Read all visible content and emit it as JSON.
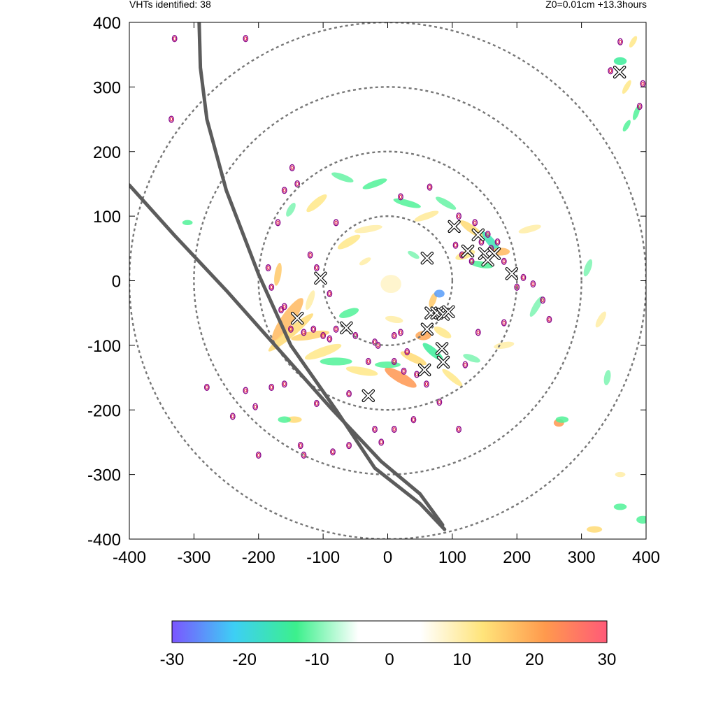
{
  "header": {
    "left": "VHTs identified: 38",
    "right": "Z0=0.01cm  +13.3hours"
  },
  "chart_data": {
    "type": "heatmap",
    "title": "",
    "xlabel": "",
    "ylabel": "",
    "xlim": [
      -400,
      400
    ],
    "ylim": [
      -400,
      400
    ],
    "xticks": [
      -400,
      -300,
      -200,
      -100,
      0,
      100,
      200,
      300,
      400
    ],
    "yticks": [
      -400,
      -300,
      -200,
      -100,
      0,
      100,
      200,
      300,
      400
    ],
    "grid": false,
    "range_rings": [
      100,
      200,
      300,
      400
    ],
    "colorbar": {
      "min": -30,
      "max": 30,
      "ticks": [
        -30,
        -20,
        -10,
        0,
        10,
        20,
        30
      ],
      "stops": [
        "#7b55ff",
        "#3dcff5",
        "#3cf08c",
        "#ffffff",
        "#ffffff",
        "#ffe47a",
        "#ff9a4d",
        "#ff5a78"
      ]
    },
    "tracks": [
      {
        "points": [
          [
            -292,
            400
          ],
          [
            -290,
            330
          ],
          [
            -280,
            250
          ],
          [
            -250,
            140
          ],
          [
            -200,
            10
          ],
          [
            -150,
            -100
          ],
          [
            -80,
            -200
          ],
          [
            -20,
            -290
          ],
          [
            50,
            -345
          ],
          [
            88,
            -385
          ]
        ]
      },
      {
        "points": [
          [
            -400,
            148
          ],
          [
            -330,
            70
          ],
          [
            -250,
            -15
          ],
          [
            -170,
            -105
          ],
          [
            -90,
            -195
          ],
          [
            -10,
            -280
          ],
          [
            50,
            -330
          ],
          [
            85,
            -378
          ]
        ]
      }
    ],
    "vht_markers": [
      [
        -104,
        4
      ],
      [
        -140,
        -58
      ],
      [
        -64,
        -73
      ],
      [
        -30,
        -178
      ],
      [
        61,
        35
      ],
      [
        103,
        84
      ],
      [
        140,
        71
      ],
      [
        124,
        46
      ],
      [
        150,
        42
      ],
      [
        165,
        42
      ],
      [
        192,
        11
      ],
      [
        67,
        -50
      ],
      [
        76,
        -50
      ],
      [
        86,
        -52
      ],
      [
        94,
        -48
      ],
      [
        61,
        -75
      ],
      [
        84,
        -105
      ],
      [
        86,
        -126
      ],
      [
        57,
        -138
      ],
      [
        359,
        323
      ],
      [
        155,
        32
      ]
    ],
    "contours": [
      [
        -170,
        90
      ],
      [
        -160,
        140
      ],
      [
        -148,
        175
      ],
      [
        -140,
        150
      ],
      [
        -185,
        20
      ],
      [
        -180,
        -10
      ],
      [
        -165,
        -45
      ],
      [
        -160,
        -40
      ],
      [
        -150,
        -75
      ],
      [
        -130,
        -80
      ],
      [
        -115,
        -75
      ],
      [
        -100,
        -85
      ],
      [
        -90,
        -90
      ],
      [
        -80,
        -75
      ],
      [
        -50,
        -85
      ],
      [
        -20,
        -95
      ],
      [
        10,
        -85
      ],
      [
        20,
        -80
      ],
      [
        -60,
        -175
      ],
      [
        -20,
        -230
      ],
      [
        -10,
        -250
      ],
      [
        10,
        -230
      ],
      [
        40,
        -215
      ],
      [
        80,
        -188
      ],
      [
        110,
        -230
      ],
      [
        60,
        -160
      ],
      [
        45,
        -145
      ],
      [
        25,
        -140
      ],
      [
        10,
        -125
      ],
      [
        30,
        -110
      ],
      [
        120,
        -130
      ],
      [
        140,
        -80
      ],
      [
        180,
        -65
      ],
      [
        200,
        -10
      ],
      [
        210,
        5
      ],
      [
        225,
        -5
      ],
      [
        240,
        -30
      ],
      [
        250,
        -60
      ],
      [
        105,
        55
      ],
      [
        115,
        40
      ],
      [
        130,
        30
      ],
      [
        145,
        60
      ],
      [
        160,
        50
      ],
      [
        170,
        60
      ],
      [
        180,
        30
      ],
      [
        155,
        72
      ],
      [
        135,
        90
      ],
      [
        110,
        100
      ],
      [
        65,
        145
      ],
      [
        20,
        130
      ],
      [
        -80,
        90
      ],
      [
        -110,
        20
      ],
      [
        -90,
        -20
      ],
      [
        -120,
        40
      ],
      [
        -160,
        -160
      ],
      [
        -180,
        -165
      ],
      [
        -205,
        -195
      ],
      [
        -240,
        -210
      ],
      [
        -220,
        -170
      ],
      [
        -280,
        -165
      ],
      [
        -135,
        -255
      ],
      [
        -130,
        -270
      ],
      [
        -85,
        -265
      ],
      [
        -60,
        -255
      ],
      [
        -200,
        -270
      ],
      [
        -330,
        375
      ],
      [
        -220,
        375
      ],
      [
        345,
        325
      ],
      [
        360,
        370
      ],
      [
        390,
        270
      ],
      [
        395,
        305
      ],
      [
        -335,
        250
      ],
      [
        -110,
        -190
      ],
      [
        -30,
        -125
      ],
      [
        -15,
        -100
      ]
    ],
    "blobs": [
      {
        "x": -155,
        "y": -60,
        "rx": 40,
        "ry": 10,
        "rot": 55,
        "v": 18
      },
      {
        "x": -150,
        "y": -80,
        "rx": 45,
        "ry": 7,
        "rot": 40,
        "v": 14
      },
      {
        "x": -120,
        "y": -85,
        "rx": 30,
        "ry": 6,
        "rot": 10,
        "v": 15
      },
      {
        "x": -100,
        "y": -110,
        "rx": 30,
        "ry": 7,
        "rot": 20,
        "v": 12
      },
      {
        "x": -80,
        "y": -125,
        "rx": 25,
        "ry": 6,
        "rot": 0,
        "v": -12
      },
      {
        "x": -40,
        "y": -140,
        "rx": 25,
        "ry": 6,
        "rot": -10,
        "v": 12
      },
      {
        "x": 20,
        "y": -150,
        "rx": 28,
        "ry": 8,
        "rot": -30,
        "v": 22
      },
      {
        "x": 40,
        "y": -120,
        "rx": 22,
        "ry": 6,
        "rot": -25,
        "v": 14
      },
      {
        "x": 70,
        "y": -110,
        "rx": 20,
        "ry": 6,
        "rot": -40,
        "v": -14
      },
      {
        "x": 55,
        "y": -85,
        "rx": 12,
        "ry": 7,
        "rot": 0,
        "v": 20
      },
      {
        "x": 85,
        "y": -80,
        "rx": 15,
        "ry": 6,
        "rot": -30,
        "v": 12
      },
      {
        "x": 70,
        "y": -30,
        "rx": 12,
        "ry": 5,
        "rot": 70,
        "v": 16
      },
      {
        "x": 80,
        "y": -20,
        "rx": 8,
        "ry": 6,
        "rot": 0,
        "v": -25
      },
      {
        "x": 5,
        "y": -5,
        "rx": 16,
        "ry": 14,
        "rot": 0,
        "v": 8
      },
      {
        "x": -30,
        "y": 80,
        "rx": 22,
        "ry": 5,
        "rot": 10,
        "v": 10
      },
      {
        "x": -60,
        "y": 60,
        "rx": 20,
        "ry": 6,
        "rot": 30,
        "v": 12
      },
      {
        "x": 30,
        "y": 120,
        "rx": 22,
        "ry": 5,
        "rot": -15,
        "v": -12
      },
      {
        "x": 60,
        "y": 100,
        "rx": 20,
        "ry": 5,
        "rot": 20,
        "v": 11
      },
      {
        "x": 90,
        "y": 120,
        "rx": 18,
        "ry": 5,
        "rot": -30,
        "v": -11
      },
      {
        "x": -20,
        "y": 150,
        "rx": 20,
        "ry": 5,
        "rot": 20,
        "v": -12
      },
      {
        "x": 130,
        "y": 80,
        "rx": 22,
        "ry": 6,
        "rot": -35,
        "v": 14
      },
      {
        "x": 160,
        "y": 60,
        "rx": 20,
        "ry": 6,
        "rot": -50,
        "v": -16
      },
      {
        "x": 175,
        "y": 45,
        "rx": 14,
        "ry": 6,
        "rot": 0,
        "v": 18
      },
      {
        "x": 120,
        "y": 40,
        "rx": 16,
        "ry": 6,
        "rot": 20,
        "v": 12
      },
      {
        "x": 145,
        "y": 25,
        "rx": 18,
        "ry": 5,
        "rot": -10,
        "v": -12
      },
      {
        "x": 220,
        "y": 80,
        "rx": 18,
        "ry": 5,
        "rot": 15,
        "v": 10
      },
      {
        "x": -70,
        "y": 160,
        "rx": 18,
        "ry": 5,
        "rot": -20,
        "v": -11
      },
      {
        "x": -110,
        "y": 120,
        "rx": 20,
        "ry": 6,
        "rot": 40,
        "v": 12
      },
      {
        "x": -150,
        "y": 110,
        "rx": 12,
        "ry": 5,
        "rot": 60,
        "v": -10
      },
      {
        "x": -120,
        "y": -30,
        "rx": 16,
        "ry": 5,
        "rot": 70,
        "v": 10
      },
      {
        "x": 0,
        "y": -130,
        "rx": 20,
        "ry": 5,
        "rot": 0,
        "v": -12
      },
      {
        "x": 100,
        "y": -150,
        "rx": 20,
        "ry": 5,
        "rot": -40,
        "v": 12
      },
      {
        "x": 130,
        "y": -120,
        "rx": 14,
        "ry": 5,
        "rot": -20,
        "v": -10
      },
      {
        "x": 180,
        "y": -100,
        "rx": 16,
        "ry": 5,
        "rot": 10,
        "v": 10
      },
      {
        "x": 230,
        "y": -40,
        "rx": 18,
        "ry": 5,
        "rot": 60,
        "v": -10
      },
      {
        "x": 265,
        "y": -220,
        "rx": 8,
        "ry": 6,
        "rot": 0,
        "v": 22
      },
      {
        "x": 270,
        "y": -215,
        "rx": 10,
        "ry": 5,
        "rot": 0,
        "v": -12
      },
      {
        "x": -145,
        "y": -215,
        "rx": 12,
        "ry": 5,
        "rot": 0,
        "v": 14
      },
      {
        "x": -160,
        "y": -215,
        "rx": 10,
        "ry": 5,
        "rot": 0,
        "v": -12
      },
      {
        "x": 310,
        "y": 20,
        "rx": 14,
        "ry": 5,
        "rot": 70,
        "v": -10
      },
      {
        "x": 330,
        "y": -60,
        "rx": 14,
        "ry": 5,
        "rot": 60,
        "v": 10
      },
      {
        "x": 340,
        "y": -150,
        "rx": 12,
        "ry": 5,
        "rot": 80,
        "v": -10
      },
      {
        "x": 360,
        "y": 340,
        "rx": 10,
        "ry": 6,
        "rot": 0,
        "v": -14
      },
      {
        "x": 370,
        "y": 300,
        "rx": 12,
        "ry": 4,
        "rot": 60,
        "v": 12
      },
      {
        "x": 385,
        "y": 260,
        "rx": 12,
        "ry": 4,
        "rot": 70,
        "v": -12
      },
      {
        "x": 370,
        "y": 240,
        "rx": 10,
        "ry": 4,
        "rot": 60,
        "v": -12
      },
      {
        "x": 380,
        "y": 370,
        "rx": 10,
        "ry": 4,
        "rot": 60,
        "v": 12
      },
      {
        "x": 395,
        "y": -370,
        "rx": 10,
        "ry": 6,
        "rot": 0,
        "v": -12
      },
      {
        "x": 320,
        "y": -385,
        "rx": 12,
        "ry": 5,
        "rot": 0,
        "v": 14
      },
      {
        "x": 360,
        "y": -350,
        "rx": 10,
        "ry": 5,
        "rot": 0,
        "v": -12
      },
      {
        "x": 360,
        "y": -300,
        "rx": 8,
        "ry": 4,
        "rot": 0,
        "v": 10
      },
      {
        "x": -310,
        "y": 90,
        "rx": 8,
        "ry": 4,
        "rot": 0,
        "v": -12
      },
      {
        "x": -170,
        "y": 10,
        "rx": 18,
        "ry": 5,
        "rot": 80,
        "v": 16
      },
      {
        "x": -60,
        "y": -50,
        "rx": 16,
        "ry": 6,
        "rot": 20,
        "v": -12
      },
      {
        "x": 10,
        "y": -60,
        "rx": 14,
        "ry": 5,
        "rot": -10,
        "v": 10
      },
      {
        "x": -35,
        "y": 30,
        "rx": 10,
        "ry": 4,
        "rot": 30,
        "v": 10
      },
      {
        "x": 40,
        "y": 40,
        "rx": 10,
        "ry": 4,
        "rot": -30,
        "v": -10
      }
    ]
  }
}
